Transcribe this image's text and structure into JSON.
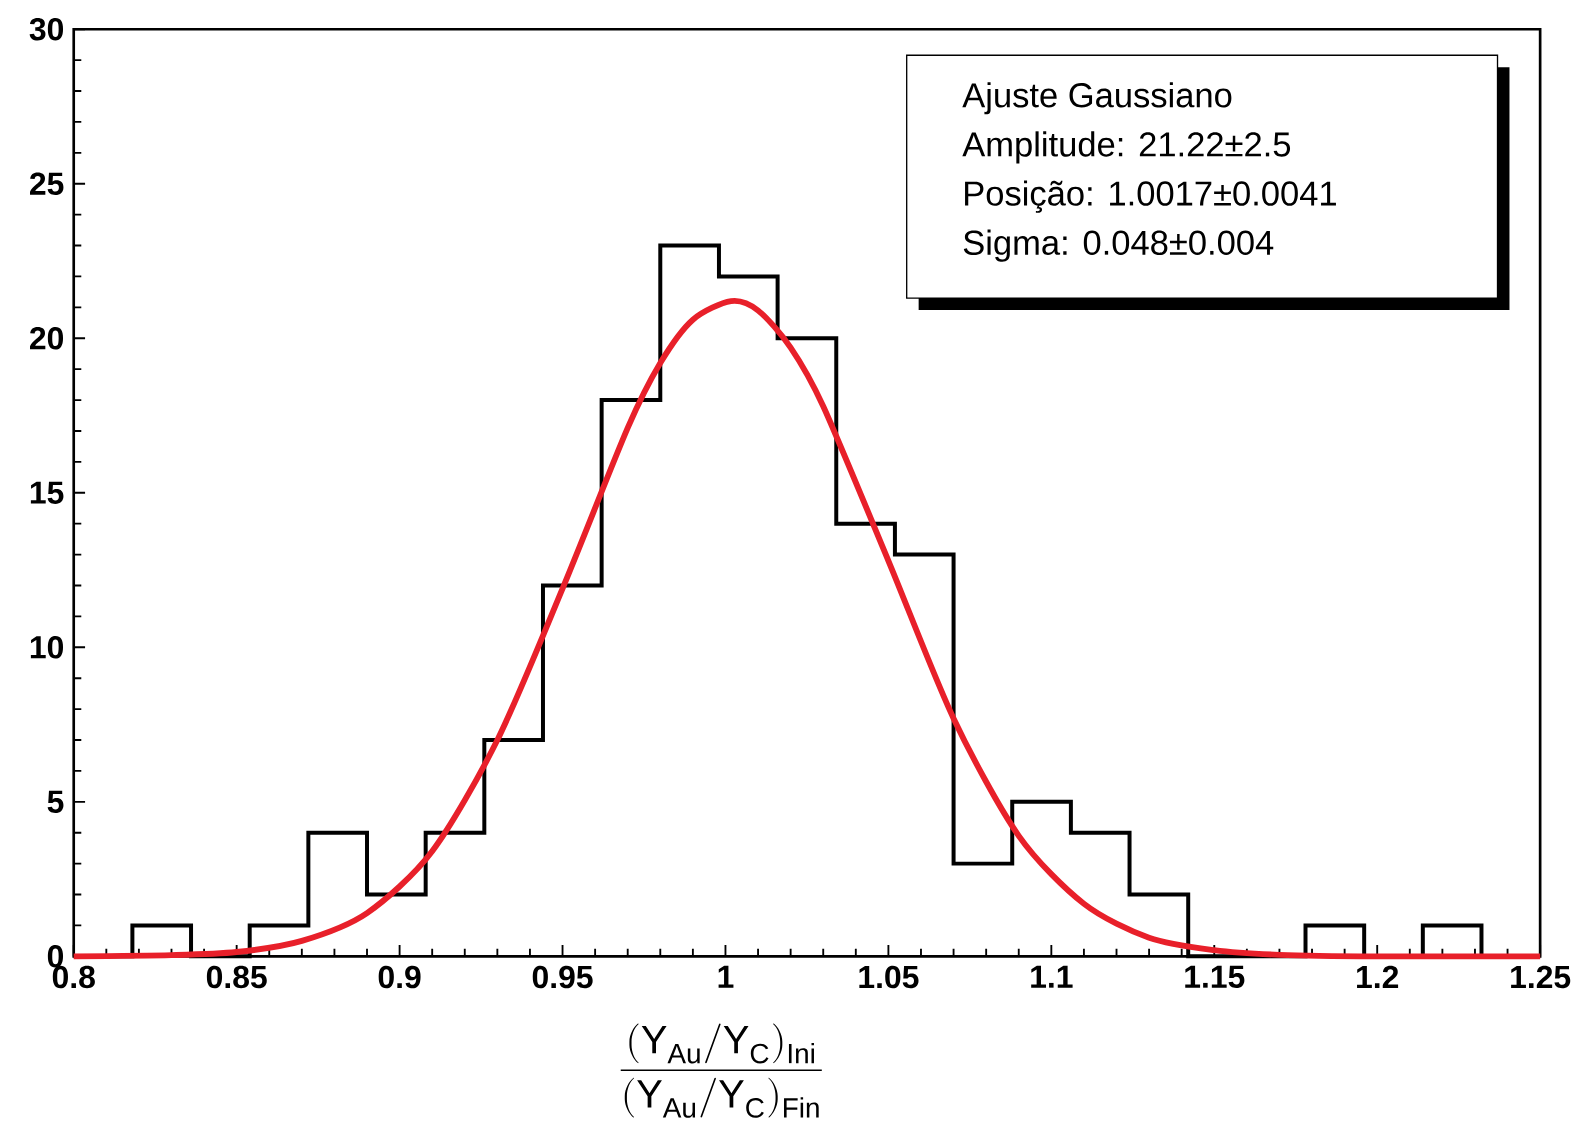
{
  "chart_data": {
    "type": "histogram",
    "xlabel": "\\frac{(\\mathrm{Y}_{\\mathrm{Au}}/\\mathrm{Y}_{\\mathrm{C}})_{\\mathrm{Ini}}}{(\\mathrm{Y}_{\\mathrm{Au}}/\\mathrm{Y}_{\\mathrm{C}})_{\\mathrm{Fin}}}",
    "series": [
      {
        "color": "#000000",
        "bins": [
          0.8,
          0.818,
          0.836,
          0.854,
          0.872,
          0.89,
          0.908,
          0.926,
          0.944,
          0.962,
          0.98,
          0.998,
          1.016,
          1.034,
          1.052,
          1.07,
          1.088,
          1.106,
          1.124,
          1.142,
          1.16,
          1.178,
          1.196,
          1.214,
          1.232,
          1.25
        ],
        "values": [
          0,
          1,
          0,
          1,
          4,
          2,
          4,
          7,
          12,
          18,
          23,
          22,
          20,
          14,
          13,
          3,
          5,
          4,
          2,
          0,
          0,
          1,
          0,
          1,
          0
        ]
      },
      {
        "type": "line",
        "color": "#e8202a",
        "x": [
          0.8,
          0.83,
          0.85,
          0.87,
          0.89,
          0.91,
          0.93,
          0.95,
          0.97,
          0.98,
          0.99,
          1.0017,
          1.01,
          1.02,
          1.03,
          1.05,
          1.07,
          1.09,
          1.11,
          1.13,
          1.15,
          1.17,
          1.2,
          1.25
        ],
        "values": [
          0,
          0.04,
          0.14,
          0.5,
          1.4,
          3.4,
          7.0,
          11.9,
          17.1,
          19.2,
          20.6,
          21.2,
          20.9,
          19.7,
          17.8,
          12.8,
          7.7,
          3.9,
          1.7,
          0.6,
          0.2,
          0.05,
          0,
          0
        ]
      }
    ],
    "xlim": [
      0.8,
      1.25
    ],
    "xticks": [
      0.8,
      0.85,
      0.9,
      0.95,
      1,
      1.05,
      1.1,
      1.15,
      1.2,
      1.25
    ],
    "ylim": [
      0,
      30
    ],
    "yticks": [
      0,
      5,
      10,
      15,
      20,
      25,
      30
    ],
    "annotations": [
      "Ajuste Gaussiano",
      "Amplitude:  21.22±2.5",
      "Posição:     1.0017±0.0041",
      "Sigma:        0.048±0.004"
    ]
  }
}
